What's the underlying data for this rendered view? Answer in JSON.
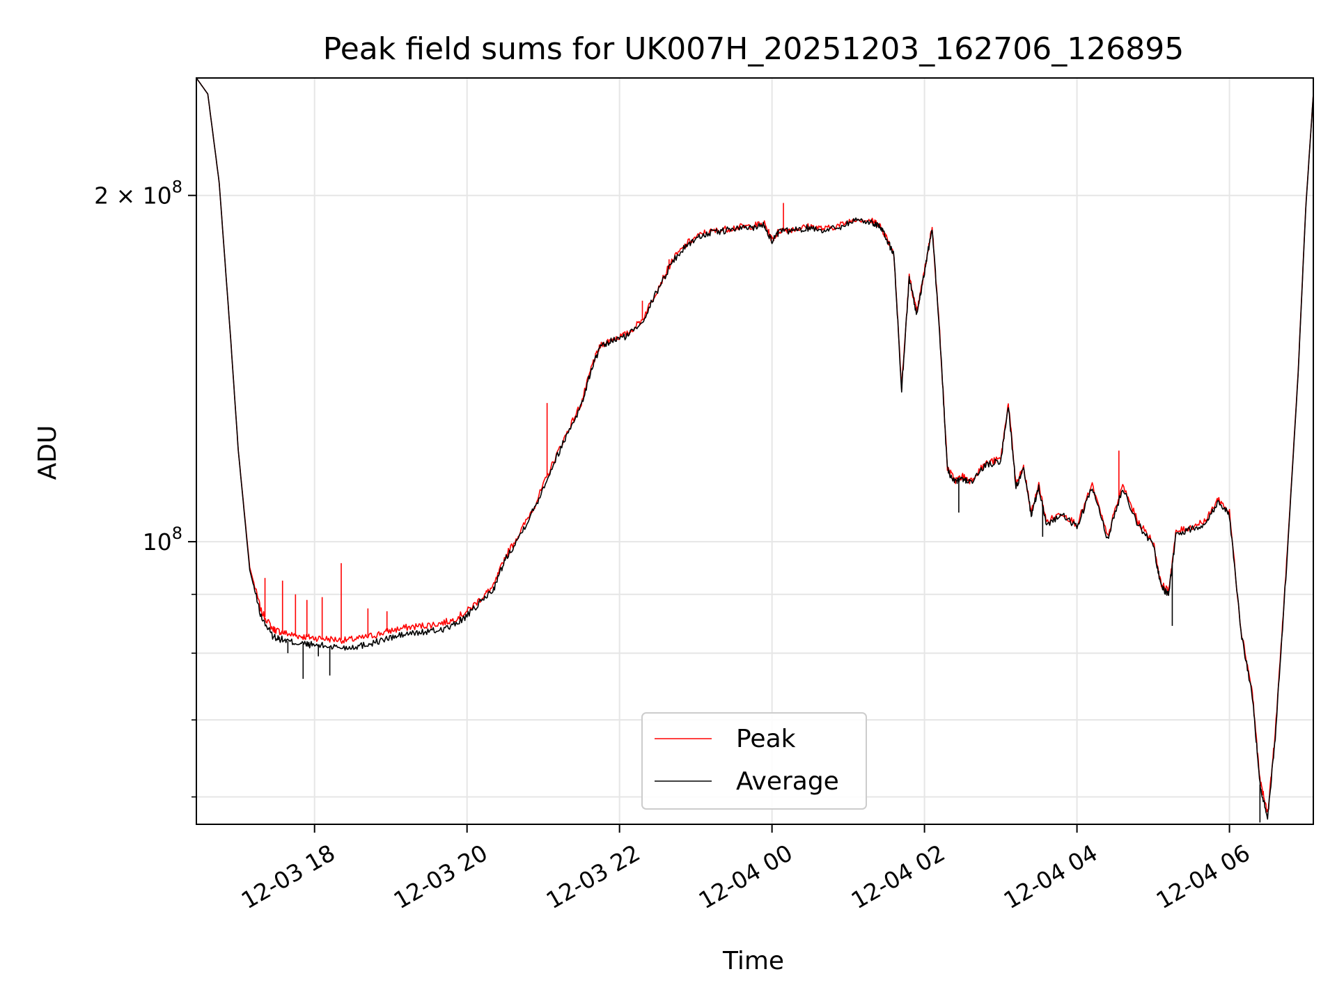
{
  "chart_data": {
    "type": "line",
    "title": "Peak field sums for UK007H_20251203_162706_126895",
    "xlabel": "Time",
    "ylabel": "ADU",
    "yscale": "log",
    "xlim": [
      16.45,
      31.1
    ],
    "ylim": [
      56800000,
      253000000
    ],
    "grid": true,
    "legend_position": "lower-center",
    "x_ticks": [
      {
        "value": 18,
        "label": "12-03 18"
      },
      {
        "value": 20,
        "label": "12-03 20"
      },
      {
        "value": 22,
        "label": "12-03 22"
      },
      {
        "value": 24,
        "label": "12-04 00"
      },
      {
        "value": 26,
        "label": "12-04 02"
      },
      {
        "value": 28,
        "label": "12-04 04"
      },
      {
        "value": 30,
        "label": "12-04 06"
      }
    ],
    "y_ticks_major": [
      {
        "value": 100000000,
        "base": "10",
        "exp": "8",
        "coef": ""
      },
      {
        "value": 200000000,
        "base": "10",
        "exp": "8",
        "coef": "2 × "
      }
    ],
    "y_ticks_minor": [
      60000000,
      70000000,
      80000000,
      90000000
    ],
    "series": [
      {
        "name": "Peak",
        "color": "#ff0000",
        "x": [
          16.45,
          16.6,
          16.75,
          16.9,
          17.0,
          17.15,
          17.3,
          17.45,
          17.55,
          17.7,
          17.85,
          18.0,
          18.2,
          18.4,
          18.6,
          18.8,
          19.0,
          19.2,
          19.4,
          19.6,
          19.8,
          20.0,
          20.2,
          20.35,
          20.5,
          20.7,
          20.9,
          21.1,
          21.3,
          21.5,
          21.65,
          21.75,
          21.9,
          22.1,
          22.3,
          22.5,
          22.7,
          22.9,
          23.1,
          23.3,
          23.5,
          23.7,
          23.9,
          24.0,
          24.1,
          24.3,
          24.5,
          24.7,
          24.9,
          25.1,
          25.3,
          25.4,
          25.5,
          25.6,
          25.7,
          25.8,
          25.9,
          26.0,
          26.1,
          26.2,
          26.3,
          26.4,
          26.5,
          26.6,
          26.8,
          27.0,
          27.1,
          27.2,
          27.3,
          27.4,
          27.5,
          27.6,
          27.8,
          28.0,
          28.2,
          28.4,
          28.6,
          28.8,
          29.0,
          29.1,
          29.2,
          29.3,
          29.5,
          29.7,
          29.85,
          30.0,
          30.15,
          30.3,
          30.4,
          30.5,
          30.6,
          30.75,
          30.9,
          31.0,
          31.1
        ],
        "y": [
          253000000,
          245000000,
          205000000,
          150000000,
          120000000,
          95000000,
          87000000,
          84000000,
          83500000,
          83000000,
          82700000,
          82500000,
          82300000,
          82100000,
          82400000,
          83000000,
          83700000,
          84200000,
          84500000,
          84800000,
          85400000,
          87000000,
          89500000,
          91500000,
          97000000,
          102000000,
          108000000,
          116000000,
          124000000,
          132000000,
          143000000,
          148000000,
          150000000,
          151500000,
          156000000,
          166000000,
          176000000,
          182000000,
          185500000,
          186500000,
          187500000,
          188000000,
          189000000,
          183000000,
          186500000,
          187000000,
          188000000,
          187000000,
          188500000,
          191000000,
          190000000,
          189000000,
          184000000,
          178000000,
          136000000,
          170000000,
          158000000,
          172000000,
          188000000,
          152000000,
          116000000,
          113000000,
          114000000,
          113000000,
          117000000,
          118000000,
          132000000,
          112000000,
          116000000,
          106000000,
          112000000,
          104000000,
          106000000,
          103500000,
          112000000,
          101000000,
          112000000,
          104000000,
          100000000,
          92000000,
          90500000,
          102000000,
          103000000,
          104500000,
          109000000,
          106000000,
          84000000,
          74000000,
          62000000,
          58000000,
          68000000,
          96000000,
          140000000,
          195000000,
          245000000
        ],
        "spikes": [
          {
            "x": 17.35,
            "y": 93000000
          },
          {
            "x": 17.58,
            "y": 92500000
          },
          {
            "x": 17.75,
            "y": 90000000
          },
          {
            "x": 17.9,
            "y": 89000000
          },
          {
            "x": 18.1,
            "y": 89500000
          },
          {
            "x": 18.35,
            "y": 95800000
          },
          {
            "x": 18.7,
            "y": 87500000
          },
          {
            "x": 18.95,
            "y": 87000000
          },
          {
            "x": 21.05,
            "y": 132000000
          },
          {
            "x": 22.3,
            "y": 162000000
          },
          {
            "x": 22.65,
            "y": 176000000
          },
          {
            "x": 24.15,
            "y": 197000000
          },
          {
            "x": 28.55,
            "y": 120000000
          }
        ]
      },
      {
        "name": "Average",
        "color": "#000000",
        "x": [
          16.45,
          16.6,
          16.75,
          16.9,
          17.0,
          17.15,
          17.3,
          17.45,
          17.55,
          17.7,
          17.85,
          18.0,
          18.2,
          18.4,
          18.6,
          18.8,
          19.0,
          19.2,
          19.4,
          19.6,
          19.8,
          20.0,
          20.2,
          20.35,
          20.5,
          20.7,
          20.9,
          21.1,
          21.3,
          21.5,
          21.65,
          21.75,
          21.9,
          22.1,
          22.3,
          22.5,
          22.7,
          22.9,
          23.1,
          23.3,
          23.5,
          23.7,
          23.9,
          24.0,
          24.1,
          24.3,
          24.5,
          24.7,
          24.9,
          25.1,
          25.3,
          25.4,
          25.5,
          25.6,
          25.7,
          25.8,
          25.9,
          26.0,
          26.1,
          26.2,
          26.3,
          26.4,
          26.5,
          26.6,
          26.8,
          27.0,
          27.1,
          27.2,
          27.3,
          27.4,
          27.5,
          27.6,
          27.8,
          28.0,
          28.2,
          28.4,
          28.6,
          28.8,
          29.0,
          29.1,
          29.2,
          29.3,
          29.5,
          29.7,
          29.85,
          30.0,
          30.15,
          30.3,
          30.4,
          30.5,
          30.6,
          30.75,
          30.9,
          31.0,
          31.1
        ],
        "y": [
          253000000,
          245000000,
          205000000,
          150000000,
          120000000,
          94500000,
          86000000,
          82800000,
          82300000,
          81800000,
          81500000,
          81300000,
          81100000,
          80900000,
          81200000,
          81800000,
          82500000,
          83100000,
          83400000,
          83700000,
          84400000,
          86200000,
          88900000,
          91000000,
          96500000,
          101500000,
          107500000,
          115500000,
          123500000,
          131500000,
          142500000,
          147500000,
          149500000,
          151000000,
          155500000,
          165500000,
          175500000,
          181500000,
          185000000,
          186000000,
          187000000,
          187500000,
          188500000,
          182500000,
          186000000,
          186500000,
          187500000,
          186500000,
          188000000,
          190500000,
          189500000,
          188500000,
          183500000,
          177500000,
          135500000,
          169500000,
          157500000,
          171500000,
          187500000,
          151500000,
          115500000,
          112500000,
          113500000,
          112500000,
          116500000,
          117500000,
          131500000,
          111500000,
          115500000,
          105500000,
          111500000,
          103500000,
          105500000,
          103000000,
          111500000,
          100500000,
          111500000,
          103500000,
          99500000,
          91500000,
          90000000,
          101500000,
          102500000,
          104000000,
          108500000,
          105500000,
          83500000,
          73500000,
          61500000,
          57500000,
          67500000,
          95500000,
          139500000,
          194500000,
          245000000
        ],
        "dips": [
          {
            "x": 17.65,
            "y": 80000000
          },
          {
            "x": 17.85,
            "y": 76000000
          },
          {
            "x": 18.05,
            "y": 79500000
          },
          {
            "x": 18.2,
            "y": 76500000
          },
          {
            "x": 26.45,
            "y": 106000000
          },
          {
            "x": 27.55,
            "y": 101000000
          },
          {
            "x": 29.25,
            "y": 84500000
          },
          {
            "x": 30.4,
            "y": 57000000
          }
        ]
      }
    ]
  }
}
